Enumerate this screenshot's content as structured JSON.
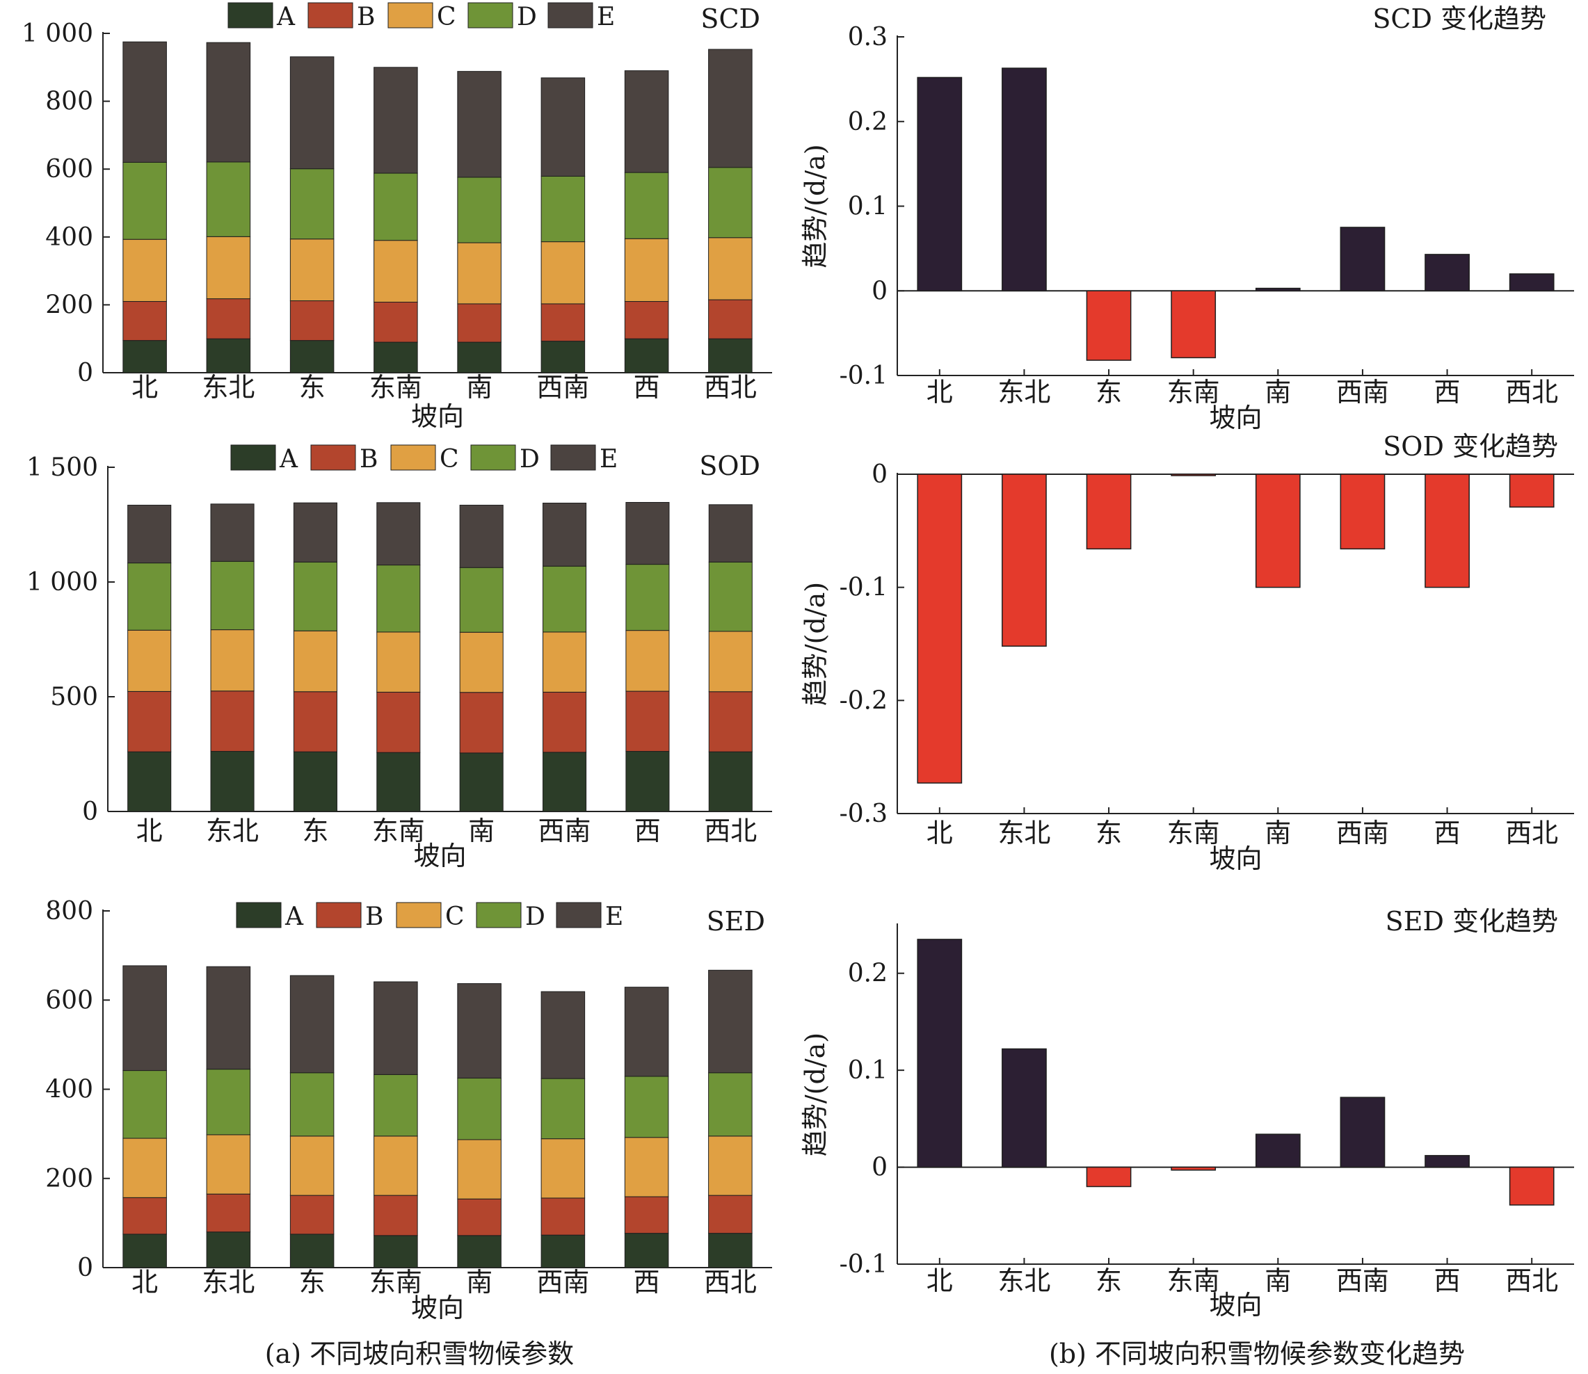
{
  "colors": {
    "A": "#2c3d28",
    "B": "#b3452d",
    "C": "#e0a043",
    "D": "#6f9437",
    "E": "#4b4340",
    "pos": "#2c1f33",
    "neg": "#e43a2c"
  },
  "captions": {
    "left": "(a) 不同坡向积雪物候参数",
    "right": "(b) 不同坡向积雪物候参数变化趋势"
  },
  "chart_data": [
    {
      "type": "bar",
      "stacked": true,
      "title": "SCD",
      "xlabel": "坡向",
      "ylabel": "",
      "categories": [
        "北",
        "东北",
        "东",
        "东南",
        "南",
        "西南",
        "西",
        "西北"
      ],
      "ylim": [
        0,
        1000
      ],
      "yticks": [
        0,
        200,
        400,
        600,
        800,
        1000
      ],
      "ytick_labels": [
        "0",
        "200",
        "400",
        "600",
        "800",
        "1 000"
      ],
      "legend": [
        "A",
        "B",
        "C",
        "D",
        "E"
      ],
      "series": [
        {
          "name": "A",
          "values": [
            95,
            100,
            95,
            90,
            90,
            93,
            100,
            100
          ]
        },
        {
          "name": "B",
          "values": [
            115,
            118,
            117,
            118,
            113,
            110,
            110,
            115
          ]
        },
        {
          "name": "C",
          "values": [
            183,
            183,
            182,
            182,
            180,
            183,
            185,
            183
          ]
        },
        {
          "name": "D",
          "values": [
            227,
            220,
            207,
            198,
            193,
            193,
            195,
            207
          ]
        },
        {
          "name": "E",
          "values": [
            355,
            352,
            330,
            312,
            312,
            290,
            300,
            348
          ]
        }
      ]
    },
    {
      "type": "bar",
      "stacked": true,
      "title": "SOD",
      "xlabel": "坡向",
      "ylabel": "",
      "categories": [
        "北",
        "东北",
        "东",
        "东南",
        "南",
        "西南",
        "西",
        "西北"
      ],
      "ylim": [
        0,
        1500
      ],
      "yticks": [
        0,
        500,
        1000,
        1500
      ],
      "ytick_labels": [
        "0",
        "500",
        "1 000",
        "1 500"
      ],
      "legend": [
        "A",
        "B",
        "C",
        "D",
        "E"
      ],
      "series": [
        {
          "name": "A",
          "values": [
            260,
            262,
            260,
            257,
            255,
            258,
            262,
            260
          ]
        },
        {
          "name": "B",
          "values": [
            263,
            263,
            262,
            263,
            264,
            262,
            262,
            262
          ]
        },
        {
          "name": "C",
          "values": [
            267,
            267,
            265,
            262,
            262,
            262,
            265,
            263
          ]
        },
        {
          "name": "D",
          "values": [
            293,
            298,
            300,
            292,
            282,
            287,
            288,
            302
          ]
        },
        {
          "name": "E",
          "values": [
            252,
            250,
            258,
            272,
            272,
            275,
            270,
            250
          ]
        }
      ]
    },
    {
      "type": "bar",
      "stacked": true,
      "title": "SED",
      "xlabel": "坡向",
      "ylabel": "",
      "categories": [
        "北",
        "东北",
        "东",
        "东南",
        "南",
        "西南",
        "西",
        "西北"
      ],
      "ylim": [
        0,
        800
      ],
      "yticks": [
        0,
        200,
        400,
        600,
        800
      ],
      "ytick_labels": [
        "0",
        "200",
        "400",
        "600",
        "800"
      ],
      "legend": [
        "A",
        "B",
        "C",
        "D",
        "E"
      ],
      "series": [
        {
          "name": "A",
          "values": [
            75,
            80,
            75,
            72,
            72,
            73,
            77,
            77
          ]
        },
        {
          "name": "B",
          "values": [
            82,
            85,
            87,
            90,
            82,
            83,
            82,
            85
          ]
        },
        {
          "name": "C",
          "values": [
            133,
            133,
            133,
            133,
            133,
            133,
            133,
            133
          ]
        },
        {
          "name": "D",
          "values": [
            152,
            147,
            142,
            138,
            138,
            135,
            137,
            142
          ]
        },
        {
          "name": "E",
          "values": [
            235,
            230,
            218,
            208,
            212,
            195,
            200,
            230
          ]
        }
      ]
    },
    {
      "type": "bar",
      "title": "SCD 变化趋势",
      "xlabel": "坡向",
      "ylabel": "趋势/(d/a)",
      "categories": [
        "北",
        "东北",
        "东",
        "东南",
        "南",
        "西南",
        "西",
        "西北"
      ],
      "ylim": [
        -0.1,
        0.3
      ],
      "yticks": [
        -0.1,
        0,
        0.1,
        0.2,
        0.3
      ],
      "ytick_labels": [
        "-0.1",
        "0",
        "0.1",
        "0.2",
        "0.3"
      ],
      "values": [
        0.252,
        0.263,
        -0.082,
        -0.079,
        0.003,
        0.075,
        0.043,
        0.02
      ]
    },
    {
      "type": "bar",
      "title": "SOD 变化趋势",
      "xlabel": "坡向",
      "ylabel": "趋势/(d/a)",
      "categories": [
        "北",
        "东北",
        "东",
        "东南",
        "南",
        "西南",
        "西",
        "西北"
      ],
      "ylim": [
        -0.3,
        0
      ],
      "yticks": [
        -0.3,
        -0.2,
        -0.1,
        0
      ],
      "ytick_labels": [
        "-0.3",
        "-0.2",
        "-0.1",
        "0"
      ],
      "values": [
        -0.273,
        -0.152,
        -0.066,
        -0.001,
        -0.1,
        -0.066,
        -0.1,
        -0.029
      ]
    },
    {
      "type": "bar",
      "title": "SED 变化趋势",
      "xlabel": "坡向",
      "ylabel": "趋势/(d/a)",
      "categories": [
        "北",
        "东北",
        "东",
        "东南",
        "南",
        "西南",
        "西",
        "西北"
      ],
      "ylim": [
        -0.1,
        0.25
      ],
      "yticks": [
        -0.1,
        0,
        0.1,
        0.2
      ],
      "ytick_labels": [
        "-0.1",
        "0",
        "0.1",
        "0.2"
      ],
      "values": [
        0.235,
        0.122,
        -0.02,
        -0.003,
        0.034,
        0.072,
        0.012,
        -0.039
      ]
    }
  ]
}
